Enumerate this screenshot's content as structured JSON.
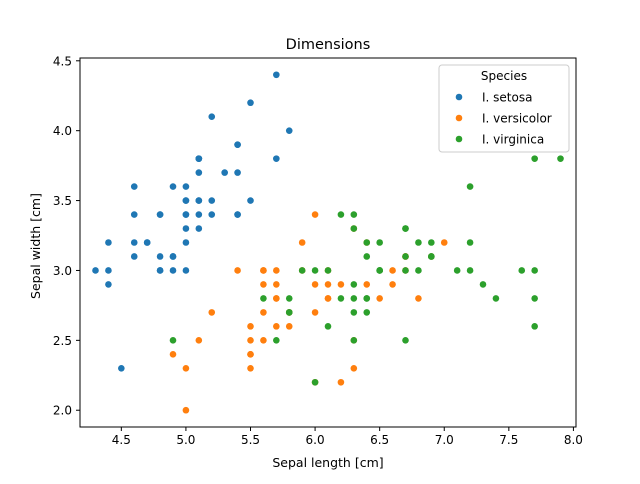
{
  "chart_data": {
    "type": "scatter",
    "title": "Dimensions",
    "xlabel": "Sepal length [cm]",
    "ylabel": "Sepal width [cm]",
    "xlim": [
      4.18,
      8.02
    ],
    "ylim": [
      1.88,
      4.52
    ],
    "xticks": [
      4.5,
      5.0,
      5.5,
      6.0,
      6.5,
      7.0,
      7.5,
      8.0
    ],
    "xtick_labels": [
      "4.5",
      "5.0",
      "5.5",
      "6.0",
      "6.5",
      "7.0",
      "7.5",
      "8.0"
    ],
    "yticks": [
      2.0,
      2.5,
      3.0,
      3.5,
      4.0,
      4.5
    ],
    "ytick_labels": [
      "2.0",
      "2.5",
      "3.0",
      "3.5",
      "4.0",
      "4.5"
    ],
    "grid": false,
    "legend": {
      "title": "Species",
      "placement": "top-right"
    },
    "series": [
      {
        "name": "I. setosa",
        "color": "#1f77b4",
        "points": [
          [
            5.1,
            3.5
          ],
          [
            4.9,
            3.0
          ],
          [
            4.7,
            3.2
          ],
          [
            4.6,
            3.1
          ],
          [
            5.0,
            3.6
          ],
          [
            5.4,
            3.9
          ],
          [
            4.6,
            3.4
          ],
          [
            5.0,
            3.4
          ],
          [
            4.4,
            2.9
          ],
          [
            4.9,
            3.1
          ],
          [
            5.4,
            3.7
          ],
          [
            4.8,
            3.4
          ],
          [
            4.8,
            3.0
          ],
          [
            4.3,
            3.0
          ],
          [
            5.8,
            4.0
          ],
          [
            5.7,
            4.4
          ],
          [
            5.4,
            3.9
          ],
          [
            5.1,
            3.5
          ],
          [
            5.7,
            3.8
          ],
          [
            5.1,
            3.8
          ],
          [
            5.4,
            3.4
          ],
          [
            5.1,
            3.7
          ],
          [
            4.6,
            3.6
          ],
          [
            5.1,
            3.3
          ],
          [
            4.8,
            3.4
          ],
          [
            5.0,
            3.0
          ],
          [
            5.0,
            3.4
          ],
          [
            5.2,
            3.5
          ],
          [
            5.2,
            3.4
          ],
          [
            4.7,
            3.2
          ],
          [
            4.8,
            3.1
          ],
          [
            5.4,
            3.4
          ],
          [
            5.2,
            4.1
          ],
          [
            5.5,
            4.2
          ],
          [
            4.9,
            3.1
          ],
          [
            5.0,
            3.2
          ],
          [
            5.5,
            3.5
          ],
          [
            4.9,
            3.6
          ],
          [
            4.4,
            3.0
          ],
          [
            5.1,
            3.4
          ],
          [
            5.0,
            3.5
          ],
          [
            4.5,
            2.3
          ],
          [
            4.4,
            3.2
          ],
          [
            5.0,
            3.5
          ],
          [
            5.1,
            3.8
          ],
          [
            4.8,
            3.0
          ],
          [
            5.1,
            3.8
          ],
          [
            4.6,
            3.2
          ],
          [
            5.3,
            3.7
          ],
          [
            5.0,
            3.3
          ]
        ]
      },
      {
        "name": "I. versicolor",
        "color": "#ff7f0e",
        "points": [
          [
            7.0,
            3.2
          ],
          [
            6.4,
            3.2
          ],
          [
            6.9,
            3.1
          ],
          [
            5.5,
            2.3
          ],
          [
            6.5,
            2.8
          ],
          [
            5.7,
            2.8
          ],
          [
            6.3,
            3.3
          ],
          [
            4.9,
            2.4
          ],
          [
            6.6,
            2.9
          ],
          [
            5.2,
            2.7
          ],
          [
            5.0,
            2.0
          ],
          [
            5.9,
            3.0
          ],
          [
            6.0,
            2.2
          ],
          [
            6.1,
            2.9
          ],
          [
            5.6,
            2.9
          ],
          [
            6.7,
            3.1
          ],
          [
            5.6,
            3.0
          ],
          [
            5.8,
            2.7
          ],
          [
            6.2,
            2.2
          ],
          [
            5.6,
            2.5
          ],
          [
            5.9,
            3.2
          ],
          [
            6.1,
            2.8
          ],
          [
            6.3,
            2.5
          ],
          [
            6.1,
            2.8
          ],
          [
            6.4,
            2.9
          ],
          [
            6.6,
            3.0
          ],
          [
            6.8,
            2.8
          ],
          [
            6.7,
            3.0
          ],
          [
            6.0,
            2.9
          ],
          [
            5.7,
            2.6
          ],
          [
            5.5,
            2.4
          ],
          [
            5.5,
            2.4
          ],
          [
            5.8,
            2.7
          ],
          [
            6.0,
            2.7
          ],
          [
            5.4,
            3.0
          ],
          [
            6.0,
            3.4
          ],
          [
            6.7,
            3.1
          ],
          [
            6.3,
            2.3
          ],
          [
            5.6,
            3.0
          ],
          [
            5.5,
            2.5
          ],
          [
            5.5,
            2.6
          ],
          [
            6.1,
            3.0
          ],
          [
            5.8,
            2.6
          ],
          [
            5.0,
            2.3
          ],
          [
            5.6,
            2.7
          ],
          [
            5.7,
            3.0
          ],
          [
            5.7,
            2.9
          ],
          [
            6.2,
            2.9
          ],
          [
            5.1,
            2.5
          ],
          [
            5.7,
            2.8
          ]
        ]
      },
      {
        "name": "I. virginica",
        "color": "#2ca02c",
        "points": [
          [
            6.3,
            3.3
          ],
          [
            5.8,
            2.7
          ],
          [
            7.1,
            3.0
          ],
          [
            6.3,
            2.9
          ],
          [
            6.5,
            3.0
          ],
          [
            7.6,
            3.0
          ],
          [
            4.9,
            2.5
          ],
          [
            7.3,
            2.9
          ],
          [
            6.7,
            2.5
          ],
          [
            7.2,
            3.6
          ],
          [
            6.5,
            3.2
          ],
          [
            6.4,
            2.7
          ],
          [
            6.8,
            3.0
          ],
          [
            5.7,
            2.5
          ],
          [
            5.8,
            2.8
          ],
          [
            6.4,
            3.2
          ],
          [
            6.5,
            3.0
          ],
          [
            7.7,
            3.8
          ],
          [
            7.7,
            2.6
          ],
          [
            6.0,
            2.2
          ],
          [
            6.9,
            3.2
          ],
          [
            5.6,
            2.8
          ],
          [
            7.7,
            2.8
          ],
          [
            6.3,
            2.7
          ],
          [
            6.7,
            3.3
          ],
          [
            7.2,
            3.2
          ],
          [
            6.2,
            2.8
          ],
          [
            6.1,
            3.0
          ],
          [
            6.4,
            2.8
          ],
          [
            7.2,
            3.0
          ],
          [
            7.4,
            2.8
          ],
          [
            7.9,
            3.8
          ],
          [
            6.4,
            2.8
          ],
          [
            6.3,
            2.8
          ],
          [
            6.1,
            2.6
          ],
          [
            7.7,
            3.0
          ],
          [
            6.3,
            3.4
          ],
          [
            6.4,
            3.1
          ],
          [
            6.0,
            3.0
          ],
          [
            6.9,
            3.1
          ],
          [
            6.7,
            3.1
          ],
          [
            6.9,
            3.1
          ],
          [
            5.8,
            2.7
          ],
          [
            6.8,
            3.2
          ],
          [
            6.7,
            3.3
          ],
          [
            6.7,
            3.0
          ],
          [
            6.3,
            2.5
          ],
          [
            6.5,
            3.0
          ],
          [
            6.2,
            3.4
          ],
          [
            5.9,
            3.0
          ]
        ]
      }
    ]
  }
}
